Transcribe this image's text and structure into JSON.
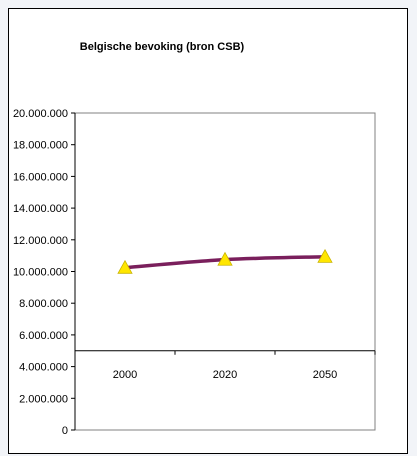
{
  "chart_data": {
    "type": "line",
    "title": "Belgische bevoking (bron CSB)",
    "xlabel": "",
    "ylabel": "",
    "categories": [
      "2000",
      "2020",
      "2050"
    ],
    "series": [
      {
        "values": [
          10240000,
          10750000,
          10930000
        ]
      }
    ],
    "ylim": [
      0,
      20000000
    ],
    "yticks": [
      0,
      2000000,
      4000000,
      6000000,
      8000000,
      10000000,
      12000000,
      14000000,
      16000000,
      18000000,
      20000000
    ],
    "ytick_labels": [
      "0",
      "2.000.000",
      "4.000.000",
      "6.000.000",
      "8.000.000",
      "10.000.000",
      "12.000.000",
      "14.000.000",
      "16.000.000",
      "18.000.000",
      "20.000.000"
    ],
    "x_axis_at": 5000000,
    "grid": false,
    "legend": "none",
    "colors": {
      "line": "#7a1f5c",
      "marker": "#ffe600",
      "marker_edge": "#c8b400",
      "axis": "#000000",
      "plot_border": "#808080"
    }
  }
}
